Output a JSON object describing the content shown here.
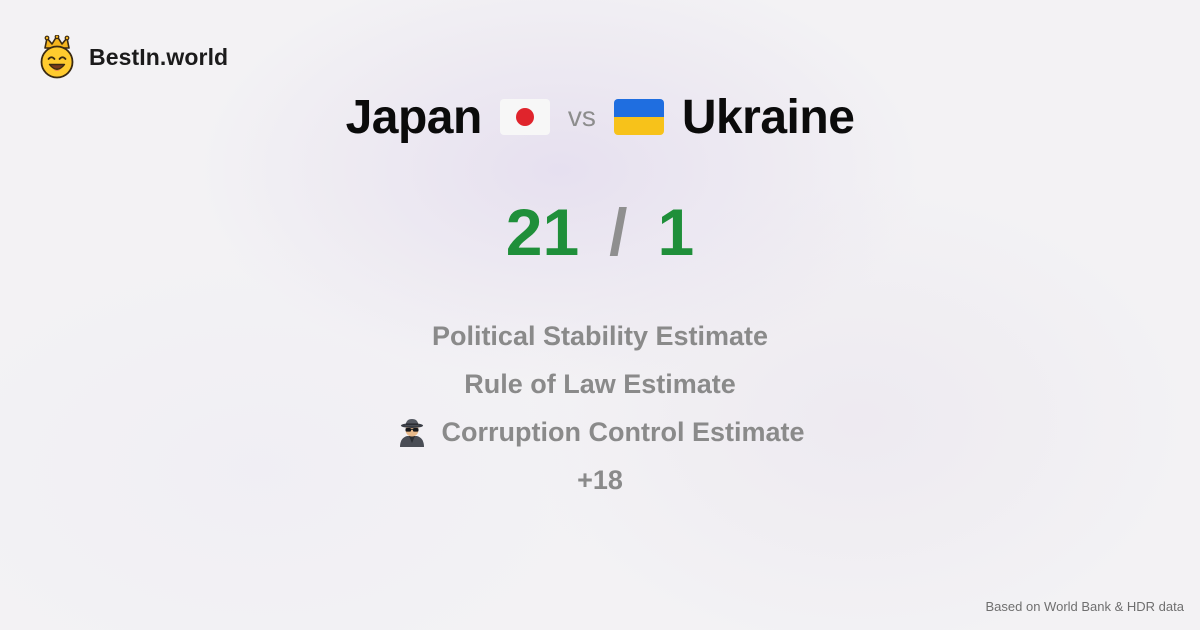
{
  "brand": {
    "name": "BestIn.world",
    "logo_icon": "smiling-face-with-crown-icon"
  },
  "comparison": {
    "left": {
      "name": "Japan",
      "flag_icon": "japan-flag-icon"
    },
    "vs_label": "vs",
    "right": {
      "name": "Ukraine",
      "flag_icon": "ukraine-flag-icon"
    }
  },
  "score": {
    "left": "21",
    "separator": "/",
    "right": "1"
  },
  "metrics": {
    "items": [
      {
        "label": "Political Stability Estimate"
      },
      {
        "label": "Rule of Law Estimate"
      },
      {
        "label": "Corruption Control Estimate",
        "icon": "spy-detective-icon"
      }
    ],
    "more": "+18"
  },
  "footer": {
    "source": "Based on World Bank & HDR data"
  },
  "colors": {
    "score": "#1f8f3a",
    "muted": "#8a8a8a",
    "title": "#0b0b0b",
    "japan_red": "#e0242c",
    "ukraine_blue": "#1f6ee0",
    "ukraine_yellow": "#f7c21a"
  }
}
